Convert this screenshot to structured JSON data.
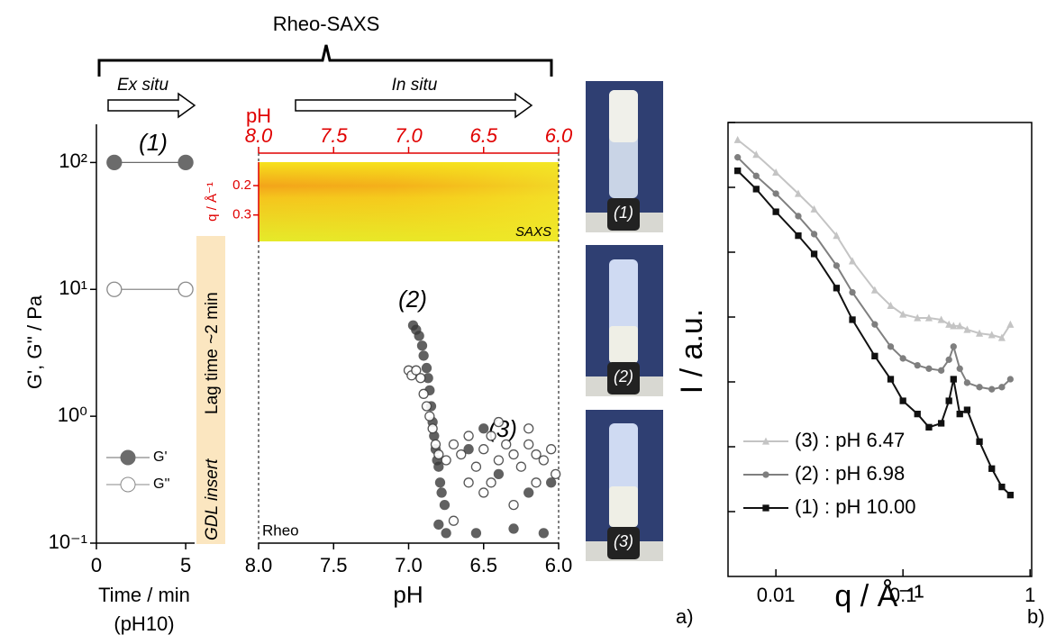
{
  "labels": {
    "rheo_saxs": "Rheo-SAXS",
    "ex_situ": "Ex situ",
    "in_situ": "In situ",
    "gdl_insert": "GDL insert",
    "lag_time": "Lag time ~2 min",
    "panel_a": "a)",
    "panel_b": "b)",
    "photos": [
      "(1)",
      "(2)",
      "(3)"
    ]
  },
  "chart_data": [
    {
      "type": "scatter",
      "ylabel": "G', G'' / Pa",
      "xlabel": "Time / min",
      "xlabel_note": "(pH10)",
      "annotation": "(1)",
      "log_y": true,
      "xlim": [
        0,
        5.5
      ],
      "xticks": [
        0,
        5
      ],
      "ylim": [
        0.1,
        200
      ],
      "yticks": [
        {
          "value": 0.1,
          "label": "10⁻¹"
        },
        {
          "value": 1,
          "label": "10⁰"
        },
        {
          "value": 10,
          "label": "10¹"
        },
        {
          "value": 100,
          "label": "10²"
        }
      ],
      "legend": "lower left",
      "series": [
        {
          "name": "G'",
          "color": "#6b6b6b",
          "filled": true,
          "x": [
            1,
            5
          ],
          "values": [
            100,
            100
          ]
        },
        {
          "name": "G''",
          "color": "#8a8a8a",
          "filled": false,
          "x": [
            1,
            5
          ],
          "values": [
            10,
            10
          ]
        }
      ]
    },
    {
      "type": "scatter",
      "xlabel": "pH",
      "top_axis_label": "pH",
      "annotations": [
        "(2)",
        "(3)",
        "Rheo"
      ],
      "log_y": true,
      "xlim": [
        8,
        6
      ],
      "ylim": [
        0.1,
        200
      ],
      "xticks": [
        {
          "value": 8,
          "label": "8.0"
        },
        {
          "value": 7.5,
          "label": "7.5"
        },
        {
          "value": 7,
          "label": "7.0"
        },
        {
          "value": 6.5,
          "label": "6.5"
        },
        {
          "value": 6,
          "label": "6.0"
        }
      ],
      "heatmap": {
        "label": "SAXS",
        "ylabel": "q / Å⁻¹",
        "ylim": [
          0.12,
          0.39
        ],
        "yticks": [
          0.2,
          0.3
        ]
      },
      "series": [
        {
          "color": "#3a3a3a",
          "filled": true,
          "x": [
            6.97,
            6.95,
            6.93,
            6.91,
            6.9,
            6.88,
            6.87,
            6.86,
            6.85,
            6.84,
            6.83,
            6.82,
            6.81,
            6.8,
            6.79,
            6.78,
            6.76,
            6.8,
            6.75,
            6.6,
            6.5,
            6.4,
            6.3,
            6.2,
            6.1,
            6.05,
            6.55
          ],
          "values": [
            5.2,
            4.8,
            4.3,
            3.6,
            3.0,
            2.4,
            2.0,
            1.6,
            1.2,
            0.9,
            0.7,
            0.55,
            0.45,
            0.4,
            0.3,
            0.25,
            0.2,
            0.14,
            0.12,
            0.55,
            0.8,
            0.35,
            0.13,
            0.25,
            0.12,
            0.3,
            0.12
          ]
        },
        {
          "color": "#444444",
          "filled": false,
          "x": [
            7.0,
            6.98,
            6.95,
            6.92,
            6.9,
            6.88,
            6.86,
            6.84,
            6.82,
            6.8,
            6.75,
            6.7,
            6.65,
            6.6,
            6.55,
            6.5,
            6.45,
            6.4,
            6.35,
            6.3,
            6.25,
            6.2,
            6.15,
            6.1,
            6.05,
            6.02,
            6.5,
            6.3,
            6.6,
            6.4,
            6.2,
            6.7,
            6.15,
            6.45
          ],
          "values": [
            2.3,
            2.1,
            2.3,
            2.0,
            1.5,
            1.2,
            1.0,
            0.8,
            0.6,
            0.5,
            0.45,
            0.6,
            0.5,
            0.7,
            0.4,
            0.55,
            0.7,
            0.45,
            0.6,
            0.5,
            0.4,
            0.6,
            0.5,
            0.45,
            0.55,
            0.35,
            0.25,
            0.2,
            0.3,
            0.9,
            0.8,
            0.15,
            0.3,
            0.3
          ]
        }
      ]
    },
    {
      "type": "line",
      "xlabel": "q / Å⁻¹",
      "ylabel": "I / a.u.",
      "log_x": true,
      "log_y": true,
      "xlim": [
        0.0042,
        1.03
      ],
      "xticks": [
        0.01,
        0.1,
        1
      ],
      "ylim": [
        0.001,
        10000
      ],
      "yticks": [
        0.01,
        0.1,
        1,
        10,
        100,
        1000,
        10000
      ],
      "legend": "lower left",
      "x": [
        0.005,
        0.007,
        0.01,
        0.015,
        0.02,
        0.03,
        0.04,
        0.06,
        0.08,
        0.1,
        0.13,
        0.16,
        0.2,
        0.23,
        0.25,
        0.28,
        0.32,
        0.4,
        0.5,
        0.6,
        0.7
      ],
      "series": [
        {
          "name": "(3) : pH 6.47",
          "color": "#c4c4c4",
          "marker": "triangle",
          "values": [
            5400,
            3200,
            1700,
            800,
            460,
            180,
            73,
            26,
            15,
            11,
            9.7,
            9.7,
            9.1,
            7.7,
            7.3,
            7.3,
            6.4,
            5.6,
            5.3,
            4.8,
            7.7
          ]
        },
        {
          "name": "(2) : pH 6.98",
          "color": "#7f7f7f",
          "marker": "circle",
          "values": [
            2900,
            1500,
            800,
            360,
            190,
            62,
            24,
            7.7,
            3.5,
            2.3,
            1.8,
            1.6,
            1.5,
            2.2,
            3.5,
            1.6,
            0.97,
            0.83,
            0.77,
            0.83,
            1.1
          ]
        },
        {
          "name": "(1) : pH 10.00",
          "color": "#111111",
          "marker": "square",
          "values": [
            1800,
            940,
            420,
            180,
            94,
            28,
            9.1,
            2.5,
            1.1,
            0.51,
            0.32,
            0.2,
            0.23,
            0.51,
            1.1,
            0.32,
            0.37,
            0.12,
            0.046,
            0.024,
            0.018
          ]
        }
      ]
    }
  ]
}
